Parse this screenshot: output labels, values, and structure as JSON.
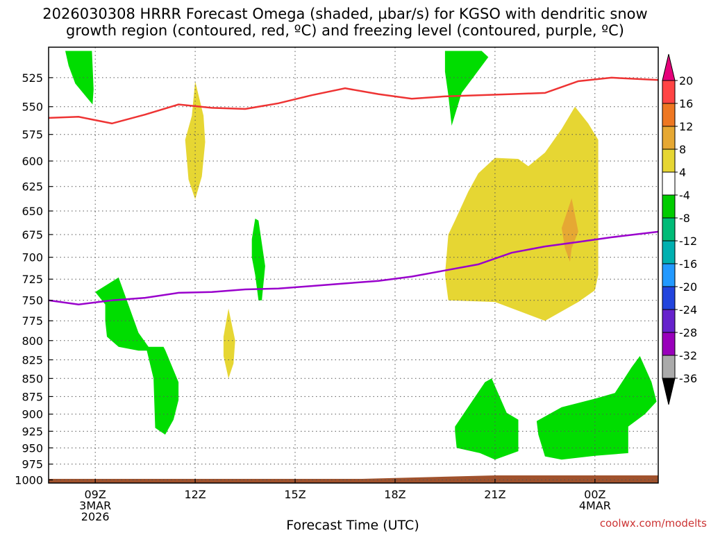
{
  "chart_data": {
    "type": "contour",
    "title_line1": "2026030308 HRRR Forecast Omega (shaded, µbar/s) for KGSO with dendritic snow",
    "title_line2": "growth region (contoured, red, ºC) and freezing level (contoured, purple, ºC)",
    "xlabel": "Forecast Time (UTC)",
    "credit": "coolwx.com/modelts",
    "x_range_hours": [
      7.6,
      25.9
    ],
    "y_range_mb": [
      500,
      1005
    ],
    "y_log_scale": true,
    "grid": true,
    "x_ticks": [
      {
        "hour": 9,
        "lines": [
          "09Z",
          "3MAR",
          "2026"
        ]
      },
      {
        "hour": 12,
        "lines": [
          "12Z"
        ]
      },
      {
        "hour": 15,
        "lines": [
          "15Z"
        ]
      },
      {
        "hour": 18,
        "lines": [
          "18Z"
        ]
      },
      {
        "hour": 21,
        "lines": [
          "21Z"
        ]
      },
      {
        "hour": 24,
        "lines": [
          "00Z",
          "4MAR"
        ]
      }
    ],
    "y_ticks": [
      525,
      550,
      575,
      600,
      625,
      650,
      675,
      700,
      725,
      750,
      775,
      800,
      825,
      850,
      875,
      900,
      925,
      950,
      975,
      1000
    ],
    "colorbar": {
      "labels": [
        "20",
        "16",
        "12",
        "8",
        "4",
        "-4",
        "-8",
        "-12",
        "-16",
        "-20",
        "-24",
        "-28",
        "-32",
        "-36"
      ],
      "colors": [
        "#ff4444",
        "#ee7722",
        "#e6a833",
        "#e6d633",
        "#ffffff",
        "#00cc00",
        "#00bb77",
        "#00b0b0",
        "#2299ff",
        "#2244dd",
        "#6622cc",
        "#9900bb",
        "#aaaaaa"
      ],
      "top_arrow_color": "#e6007a",
      "bottom_arrow_color": "#000000"
    },
    "shaded_regions": [
      {
        "level": -4,
        "color": "#00dd00",
        "points": [
          [
            8.1,
            503
          ],
          [
            8.9,
            503
          ],
          [
            8.95,
            535
          ],
          [
            8.92,
            548
          ],
          [
            8.4,
            530
          ],
          [
            8.2,
            515
          ]
        ]
      },
      {
        "level": -4,
        "color": "#00dd00",
        "points": [
          [
            19.5,
            503
          ],
          [
            20.6,
            503
          ],
          [
            20.8,
            508
          ],
          [
            20.0,
            538
          ],
          [
            19.7,
            567
          ],
          [
            19.6,
            540
          ],
          [
            19.5,
            520
          ]
        ]
      },
      {
        "level": -4,
        "color": "#00dd00",
        "points": [
          [
            13.8,
            658
          ],
          [
            13.9,
            660
          ],
          [
            14.1,
            710
          ],
          [
            14.0,
            750
          ],
          [
            13.9,
            750
          ],
          [
            13.8,
            720
          ],
          [
            13.7,
            700
          ],
          [
            13.7,
            680
          ]
        ]
      },
      {
        "level": -4,
        "color": "#00dd00",
        "points": [
          [
            9.3,
            755
          ],
          [
            9.0,
            740
          ],
          [
            9.7,
            723
          ],
          [
            10.3,
            790
          ],
          [
            10.6,
            808
          ],
          [
            11.05,
            808
          ],
          [
            11.1,
            812
          ],
          [
            11.5,
            855
          ],
          [
            11.5,
            880
          ],
          [
            11.35,
            908
          ],
          [
            11.1,
            930
          ],
          [
            10.8,
            920
          ],
          [
            10.75,
            850
          ],
          [
            10.55,
            813
          ],
          [
            10.3,
            813
          ],
          [
            9.7,
            808
          ],
          [
            9.35,
            795
          ],
          [
            9.3,
            775
          ]
        ]
      },
      {
        "level": -4,
        "color": "#00dd00",
        "points": [
          [
            19.8,
            918
          ],
          [
            20.7,
            855
          ],
          [
            20.9,
            850
          ],
          [
            21.35,
            898
          ],
          [
            21.7,
            908
          ],
          [
            21.7,
            955
          ],
          [
            21.0,
            968
          ],
          [
            20.55,
            958
          ],
          [
            19.85,
            950
          ],
          [
            19.8,
            925
          ]
        ]
      },
      {
        "level": -4,
        "color": "#00dd00",
        "points": [
          [
            22.25,
            910
          ],
          [
            23.0,
            890
          ],
          [
            24.0,
            878
          ],
          [
            24.6,
            870
          ],
          [
            25.1,
            835
          ],
          [
            25.35,
            820
          ],
          [
            25.7,
            855
          ],
          [
            25.85,
            882
          ],
          [
            25.5,
            900
          ],
          [
            25.0,
            918
          ],
          [
            25.0,
            958
          ],
          [
            24.0,
            962
          ],
          [
            23.0,
            968
          ],
          [
            22.5,
            963
          ],
          [
            22.3,
            930
          ]
        ]
      },
      {
        "level": 4,
        "color": "#e6d633",
        "points": [
          [
            11.7,
            580
          ],
          [
            11.9,
            558
          ],
          [
            12.0,
            528
          ],
          [
            12.25,
            558
          ],
          [
            12.3,
            582
          ],
          [
            12.2,
            615
          ],
          [
            12.0,
            638
          ],
          [
            11.8,
            618
          ]
        ]
      },
      {
        "level": 4,
        "color": "#e6d633",
        "points": [
          [
            12.85,
            795
          ],
          [
            13.0,
            760
          ],
          [
            13.2,
            800
          ],
          [
            13.15,
            830
          ],
          [
            13.0,
            850
          ],
          [
            12.85,
            820
          ]
        ]
      },
      {
        "level": 4,
        "color": "#e6d633",
        "points": [
          [
            19.5,
            720
          ],
          [
            19.6,
            675
          ],
          [
            19.8,
            660
          ],
          [
            20.2,
            630
          ],
          [
            20.5,
            612
          ],
          [
            21.0,
            597
          ],
          [
            21.7,
            598
          ],
          [
            22.0,
            605
          ],
          [
            22.5,
            592
          ],
          [
            23.0,
            570
          ],
          [
            23.4,
            550
          ],
          [
            23.8,
            565
          ],
          [
            24.1,
            580
          ],
          [
            24.1,
            720
          ],
          [
            24.0,
            738
          ],
          [
            23.5,
            752
          ],
          [
            22.5,
            775
          ],
          [
            21.0,
            752
          ],
          [
            19.6,
            750
          ]
        ]
      },
      {
        "level": 8,
        "color": "#e6a833",
        "points": [
          [
            23.0,
            668
          ],
          [
            23.3,
            637
          ],
          [
            23.5,
            672
          ],
          [
            23.3,
            690
          ],
          [
            23.25,
            705
          ],
          [
            23.1,
            690
          ]
        ]
      }
    ],
    "red_contour_dgz": [
      [
        7.6,
        560
      ],
      [
        8.5,
        559
      ],
      [
        9.5,
        565
      ],
      [
        10.5,
        557
      ],
      [
        11.5,
        548
      ],
      [
        12.5,
        551
      ],
      [
        13.5,
        552
      ],
      [
        14.5,
        547
      ],
      [
        15.5,
        540
      ],
      [
        16.5,
        534
      ],
      [
        17.5,
        539
      ],
      [
        18.5,
        543
      ],
      [
        19.5,
        541
      ],
      [
        20.5,
        540
      ],
      [
        21.5,
        539
      ],
      [
        22.5,
        538
      ],
      [
        23.5,
        528
      ],
      [
        24.5,
        525
      ],
      [
        25.9,
        527
      ]
    ],
    "purple_contour_freezing": [
      [
        7.6,
        750
      ],
      [
        8.5,
        755
      ],
      [
        9.5,
        750
      ],
      [
        10.5,
        747
      ],
      [
        11.5,
        741
      ],
      [
        12.5,
        740
      ],
      [
        13.5,
        737
      ],
      [
        14.5,
        736
      ],
      [
        15.5,
        733
      ],
      [
        16.5,
        730
      ],
      [
        17.5,
        727
      ],
      [
        18.5,
        722
      ],
      [
        19.5,
        715
      ],
      [
        20.5,
        708
      ],
      [
        21.5,
        695
      ],
      [
        22.5,
        688
      ],
      [
        23.5,
        683
      ],
      [
        24.5,
        678
      ],
      [
        25.9,
        672
      ]
    ],
    "surface_terrain_color": "#a0522d"
  }
}
